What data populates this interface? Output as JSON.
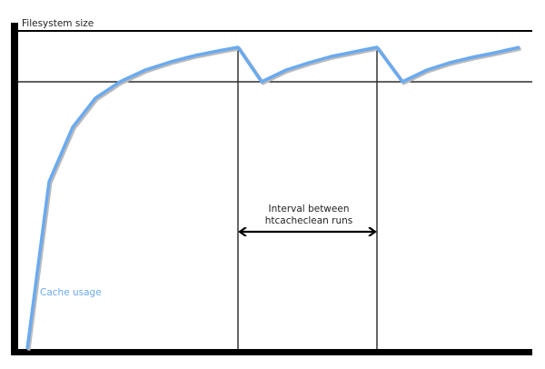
{
  "diagram": {
    "y_axis_top_label": "Filesystem size",
    "curve_label": "Cache usage",
    "interval_label_line1": "Interval between",
    "interval_label_line2": "htcacheclean runs",
    "colors": {
      "curve": "#6aaaf0",
      "axis": "#000000",
      "curve_label": "#6aaaf0"
    }
  }
}
